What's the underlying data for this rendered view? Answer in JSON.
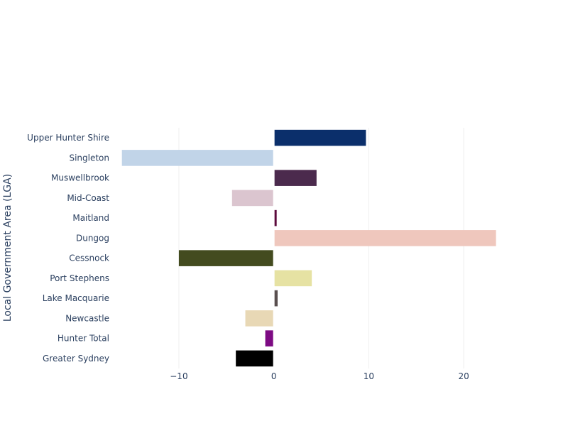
{
  "chart_data": {
    "type": "bar",
    "orientation": "horizontal",
    "ylabel": "Local Government Area (LGA)",
    "xlabel": "",
    "xlim": [
      -16.5,
      25
    ],
    "xticks": [
      -10,
      0,
      10,
      20
    ],
    "xtick_labels": [
      "−10",
      "0",
      "10",
      "20"
    ],
    "grid": true,
    "categories": [
      "Upper Hunter Shire",
      "Singleton",
      "Muswellbrook",
      "Mid-Coast",
      "Maitland",
      "Dungog",
      "Cessnock",
      "Port Stephens",
      "Lake Macquarie",
      "Newcastle",
      "Hunter Total",
      "Greater Sydney"
    ],
    "values": [
      9.7,
      -16.0,
      4.5,
      -4.4,
      0.3,
      23.4,
      -10.0,
      4.0,
      0.4,
      -3.0,
      -0.9,
      -4.0
    ],
    "colors": [
      "#0b2f6b",
      "#c1d4e8",
      "#4b2a4d",
      "#dbc5cf",
      "#5c0a3c",
      "#efc7bd",
      "#434b1f",
      "#e6e2a3",
      "#594f4f",
      "#e8d8b5",
      "#7d0b83",
      "#000000"
    ]
  }
}
